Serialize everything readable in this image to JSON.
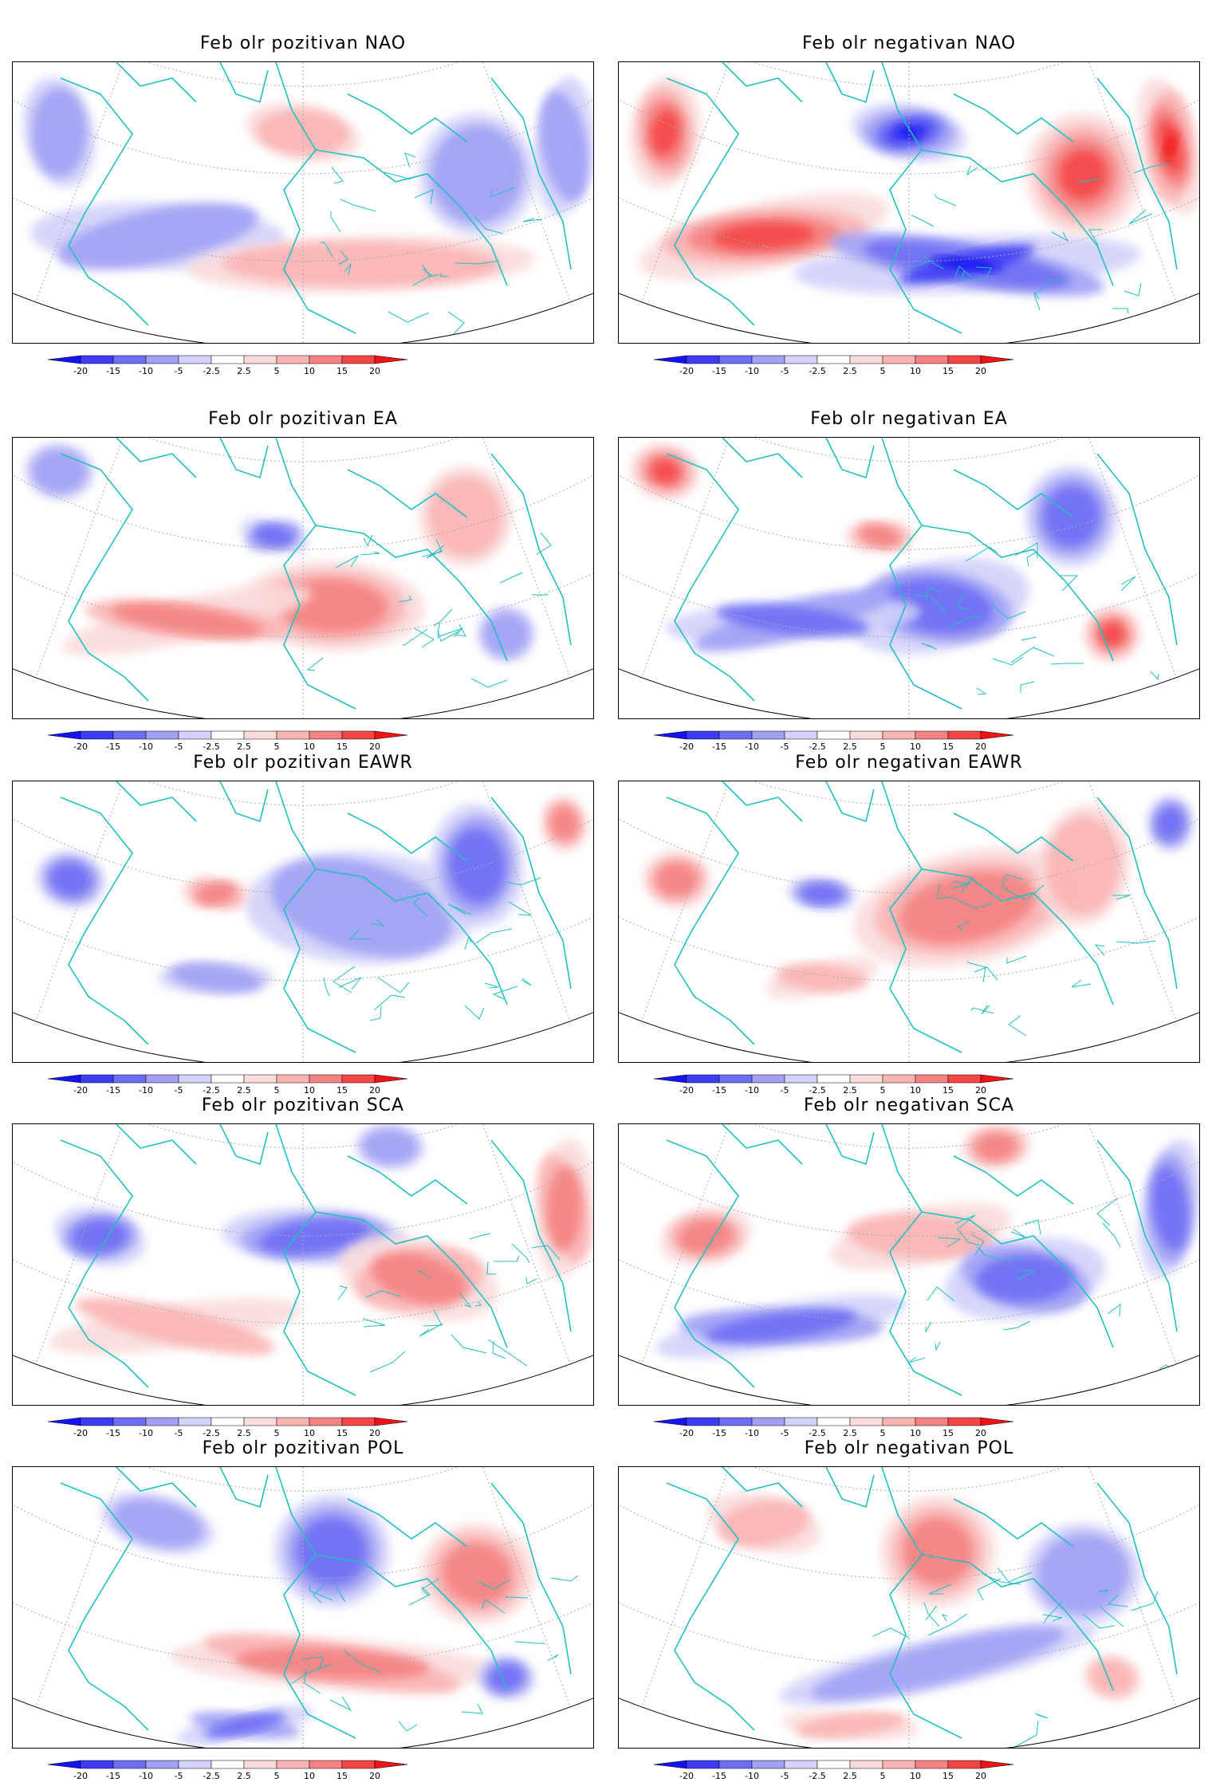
{
  "colorbar": {
    "labels": [
      "-20",
      "-15",
      "-10",
      "-5",
      "-2.5",
      "2.5",
      "5",
      "10",
      "15",
      "20"
    ],
    "colors": [
      "#1414f0",
      "#3c3cf5",
      "#6e6ef5",
      "#a0a0f5",
      "#d2d2fa",
      "#ffffff",
      "#fadcdc",
      "#fab4b4",
      "#f58282",
      "#f54646",
      "#f01414"
    ]
  },
  "panels": [
    {
      "title": "Feb olr pozitivan NAO",
      "mode": "NAO",
      "phase": "pozitivan",
      "intensity": 0.45
    },
    {
      "title": "Feb olr negativan NAO",
      "mode": "NAO",
      "phase": "negativan",
      "intensity": 1.0
    },
    {
      "title": "Feb olr pozitivan EA",
      "mode": "EA",
      "phase": "pozitivan",
      "intensity": 0.6
    },
    {
      "title": "Feb olr negativan EA",
      "mode": "EA",
      "phase": "negativan",
      "intensity": 0.75
    },
    {
      "title": "Feb olr pozitivan EAWR",
      "mode": "EAWR",
      "phase": "pozitivan",
      "intensity": 0.5
    },
    {
      "title": "Feb olr negativan EAWR",
      "mode": "EAWR",
      "phase": "negativan",
      "intensity": 0.55
    },
    {
      "title": "Feb olr pozitivan SCA",
      "mode": "SCA",
      "phase": "pozitivan",
      "intensity": 0.5
    },
    {
      "title": "Feb olr negativan SCA",
      "mode": "SCA",
      "phase": "negativan",
      "intensity": 0.6
    },
    {
      "title": "Feb olr pozitivan POL",
      "mode": "POL",
      "phase": "pozitivan",
      "intensity": 0.7
    },
    {
      "title": "Feb olr negativan POL",
      "mode": "POL",
      "phase": "negativan",
      "intensity": 0.5
    }
  ]
}
